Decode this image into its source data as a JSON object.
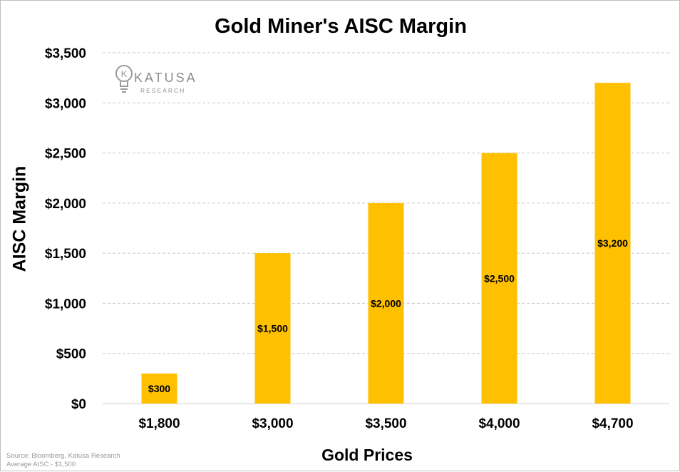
{
  "chart_data": {
    "type": "bar",
    "title": "Gold Miner's AISC Margin",
    "xlabel": "Gold Prices",
    "ylabel": "AISC Margin",
    "categories": [
      "$1,800",
      "$3,000",
      "$3,500",
      "$4,000",
      "$4,700"
    ],
    "values": [
      300,
      1500,
      2000,
      2500,
      3200
    ],
    "data_labels": [
      "$300",
      "$1,500",
      "$2,000",
      "$2,500",
      "$3,200"
    ],
    "ylim": [
      0,
      3500
    ],
    "yticks": [
      0,
      500,
      1000,
      1500,
      2000,
      2500,
      3000,
      3500
    ],
    "ytick_labels": [
      "$0",
      "$500",
      "$1,000",
      "$1,500",
      "$2,000",
      "$2,500",
      "$3,000",
      "$3,500"
    ],
    "grid": true,
    "legend": "none",
    "bar_color": "#FFC000"
  },
  "logo": {
    "name": "KATUSA",
    "sub": "RESEARCH",
    "letter": "K"
  },
  "source": {
    "line1": "Source: Bloomberg, Katusa Research",
    "line2": "Average AISC - $1,500"
  }
}
